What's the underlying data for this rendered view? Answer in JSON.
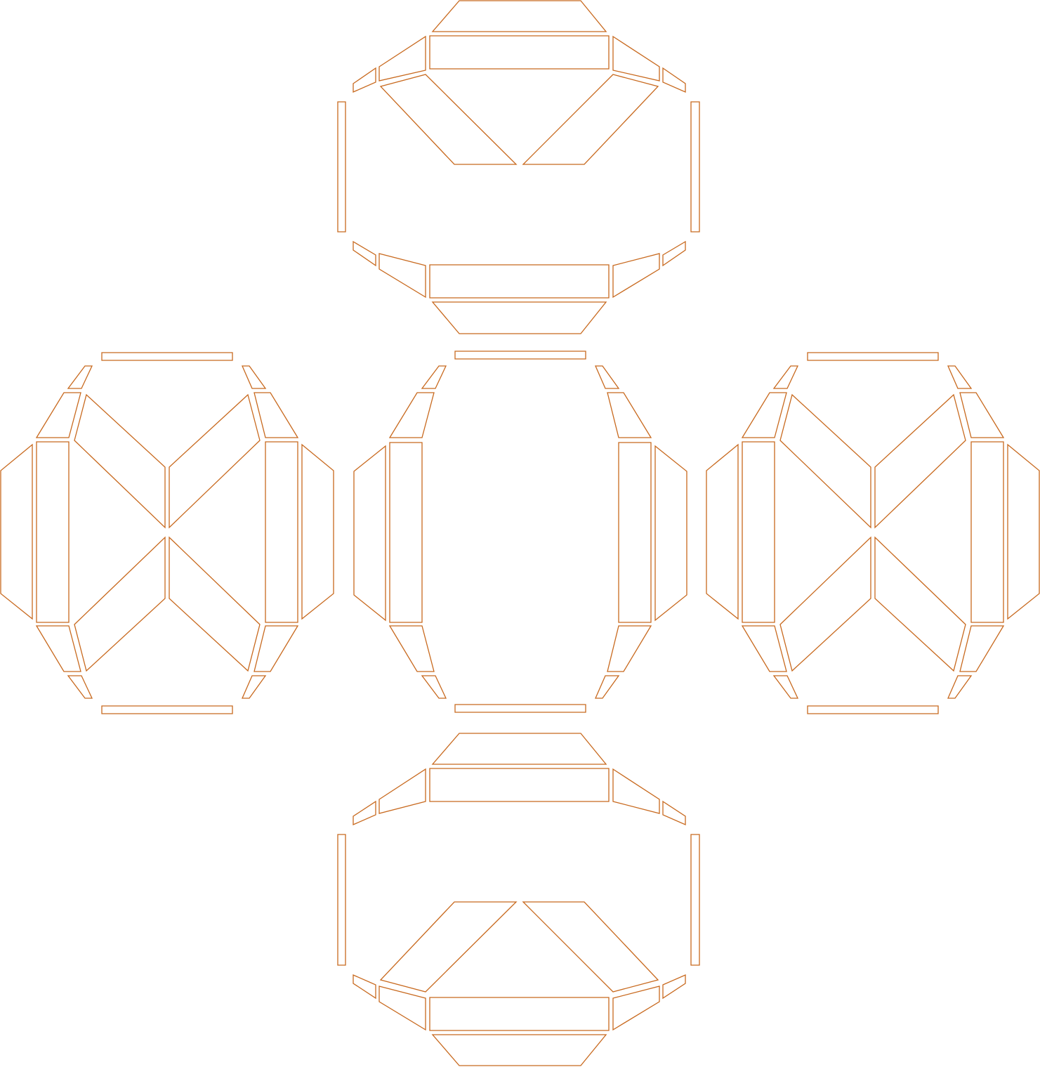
{
  "diagram": {
    "type": "cut-pattern-net",
    "stroke_color": "#c8691e",
    "background_color": "#ffffff",
    "faces": [
      "top",
      "left",
      "center",
      "right",
      "bottom"
    ]
  }
}
